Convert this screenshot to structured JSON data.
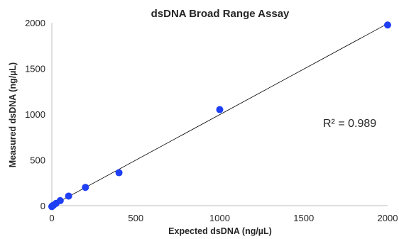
{
  "chart_data": {
    "type": "scatter",
    "title": "dsDNA Broad Range Assay",
    "xlabel": "Expected dsDNA (ng/µL)",
    "ylabel": "Measured dsDNA (ng/µL)",
    "xlim": [
      0,
      2000
    ],
    "ylim": [
      0,
      2000
    ],
    "x_ticks": [
      0,
      500,
      1000,
      1500,
      2000
    ],
    "y_ticks": [
      0,
      500,
      1000,
      1500,
      2000
    ],
    "x_tick_labels": [
      "0",
      "500",
      "1000",
      "1500",
      "2000"
    ],
    "y_tick_labels": [
      "0",
      "500",
      "1000",
      "1500",
      "2000"
    ],
    "grid": false,
    "legend": "none",
    "series": [
      {
        "color": "#1f3ff5",
        "x": [
          0,
          2,
          5,
          10,
          25,
          50,
          100,
          200,
          400,
          1000,
          2000
        ],
        "y": [
          -10,
          -5,
          0,
          5,
          25,
          55,
          105,
          200,
          360,
          1050,
          1975
        ]
      }
    ],
    "trendline": {
      "type": "linear",
      "from": [
        0,
        0
      ],
      "to": [
        2000,
        1990
      ],
      "color": "#000000"
    },
    "annotations": [
      {
        "text": "R² = 0.989"
      }
    ]
  }
}
